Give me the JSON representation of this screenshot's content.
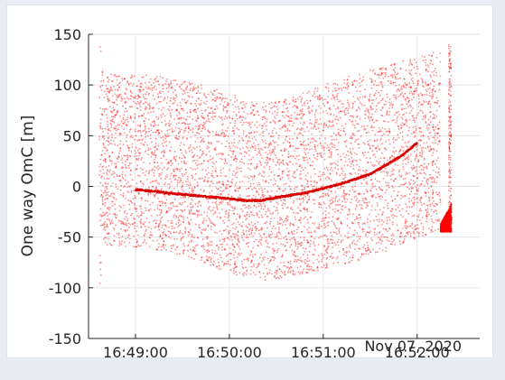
{
  "chart_data": {
    "type": "scatter",
    "title": "",
    "xlabel": "",
    "ylabel": "One way OmC [m]",
    "x_tick_labels": [
      "16:49:00",
      "16:50:00",
      "16:51:00",
      "16:52:00"
    ],
    "x_secondary_label": "Nov 07, 2020",
    "x_range": [
      "16:48:30",
      "16:52:40"
    ],
    "x_ticks": [
      "16:49:00",
      "16:50:00",
      "16:51:00",
      "16:52:00"
    ],
    "y_ticks": [
      -150,
      -100,
      -50,
      0,
      50,
      100,
      150
    ],
    "ylim": [
      -150,
      150
    ],
    "grid": true,
    "marker_color": "#ff0000",
    "dense_track": [
      {
        "time": "16:49:00",
        "value": -3
      },
      {
        "time": "16:49:30",
        "value": -8
      },
      {
        "time": "16:50:00",
        "value": -12
      },
      {
        "time": "16:50:10",
        "value": -14
      },
      {
        "time": "16:50:20",
        "value": -14
      },
      {
        "time": "16:50:30",
        "value": -11
      },
      {
        "time": "16:50:50",
        "value": -6
      },
      {
        "time": "16:51:10",
        "value": 2
      },
      {
        "time": "16:51:30",
        "value": 12
      },
      {
        "time": "16:51:50",
        "value": 30
      },
      {
        "time": "16:52:00",
        "value": 43
      }
    ],
    "scatter_envelope": [
      {
        "time": "16:48:37",
        "upper": 148,
        "lower": -107
      },
      {
        "time": "16:48:40",
        "upper": 110,
        "lower": -58
      },
      {
        "time": "16:49:00",
        "upper": 112,
        "lower": -60
      },
      {
        "time": "16:49:30",
        "upper": 105,
        "lower": -68
      },
      {
        "time": "16:50:00",
        "upper": 92,
        "lower": -85
      },
      {
        "time": "16:50:15",
        "upper": 83,
        "lower": -93
      },
      {
        "time": "16:50:30",
        "upper": 83,
        "lower": -92
      },
      {
        "time": "16:51:00",
        "upper": 100,
        "lower": -82
      },
      {
        "time": "16:51:30",
        "upper": 115,
        "lower": -70
      },
      {
        "time": "16:52:00",
        "upper": 128,
        "lower": -52
      },
      {
        "time": "16:52:15",
        "upper": 134,
        "lower": -42
      }
    ],
    "end_burst": {
      "time_range": [
        "16:52:15",
        "16:52:22"
      ],
      "value_range": [
        -45,
        -25
      ]
    },
    "end_tail": {
      "time": "16:52:21",
      "range": [
        -40,
        140
      ]
    }
  }
}
